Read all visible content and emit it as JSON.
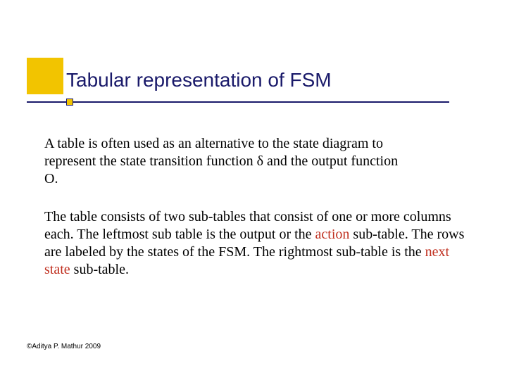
{
  "colors": {
    "accent_yellow": "#f2c400",
    "title_navy": "#1a1a6a",
    "text_black": "#000000",
    "highlight_red": "#c03020",
    "background": "#ffffff"
  },
  "typography": {
    "title_font": "Verdana",
    "title_size_pt": 28,
    "body_font": "Times New Roman",
    "body_size_pt": 20,
    "footer_font": "Verdana",
    "footer_size_pt": 10
  },
  "title": "Tabular representation of FSM",
  "paragraph1": "A table is often used as an alternative to the state diagram to represent the state transition function δ and the output function O.",
  "paragraph2": {
    "pre1": "The table consists of two  sub-tables that consist of one or more columns each. The leftmost sub table is the output or the ",
    "hl1": "action",
    "mid": " sub-table. The rows are labeled by the states of the FSM. The rightmost sub-table is the ",
    "hl2": "next state",
    "post": " sub-table."
  },
  "footer": "©Aditya P. Mathur 2009"
}
